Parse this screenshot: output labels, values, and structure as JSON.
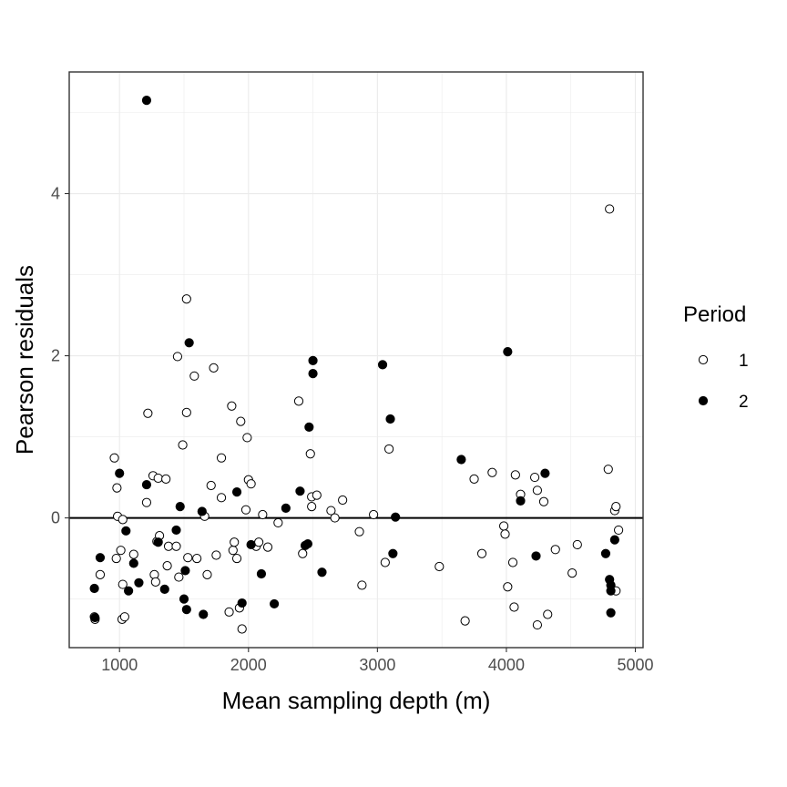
{
  "chart_data": {
    "type": "scatter",
    "xlabel": "Mean sampling depth (m)",
    "ylabel": "Pearson residuals",
    "xlim": [
      610,
      5060
    ],
    "ylim": [
      -1.6,
      5.5
    ],
    "xticks": [
      1000,
      2000,
      3000,
      4000,
      5000
    ],
    "yticks": [
      0,
      2,
      4
    ],
    "grid": true,
    "reference_line_y": 0,
    "legend": {
      "title": "Period",
      "position": "right",
      "entries": [
        {
          "label": "1",
          "marker": "open-circle"
        },
        {
          "label": "2",
          "marker": "filled-circle"
        }
      ]
    },
    "series": [
      {
        "name": "1",
        "marker": "open-circle",
        "points": [
          [
            805,
            -1.22
          ],
          [
            810,
            -1.25
          ],
          [
            850,
            -0.7
          ],
          [
            960,
            0.74
          ],
          [
            975,
            -0.5
          ],
          [
            980,
            0.37
          ],
          [
            985,
            0.02
          ],
          [
            1010,
            -0.4
          ],
          [
            1020,
            -1.25
          ],
          [
            1025,
            -0.02
          ],
          [
            1025,
            -0.82
          ],
          [
            1040,
            -1.22
          ],
          [
            1110,
            -0.45
          ],
          [
            1210,
            0.19
          ],
          [
            1220,
            1.29
          ],
          [
            1260,
            0.52
          ],
          [
            1270,
            -0.7
          ],
          [
            1280,
            -0.79
          ],
          [
            1290,
            -0.29
          ],
          [
            1300,
            0.49
          ],
          [
            1310,
            -0.22
          ],
          [
            1360,
            0.48
          ],
          [
            1370,
            -0.59
          ],
          [
            1380,
            -0.35
          ],
          [
            1440,
            -0.35
          ],
          [
            1450,
            1.99
          ],
          [
            1460,
            -0.73
          ],
          [
            1490,
            0.9
          ],
          [
            1520,
            2.7
          ],
          [
            1520,
            1.3
          ],
          [
            1530,
            -0.49
          ],
          [
            1580,
            1.75
          ],
          [
            1600,
            -0.5
          ],
          [
            1660,
            0.02
          ],
          [
            1680,
            -0.7
          ],
          [
            1710,
            0.4
          ],
          [
            1730,
            1.85
          ],
          [
            1750,
            -0.46
          ],
          [
            1790,
            0.25
          ],
          [
            1790,
            0.74
          ],
          [
            1850,
            -1.16
          ],
          [
            1870,
            1.38
          ],
          [
            1880,
            -0.4
          ],
          [
            1890,
            -0.3
          ],
          [
            1910,
            -0.5
          ],
          [
            1930,
            -1.11
          ],
          [
            1940,
            1.19
          ],
          [
            1950,
            -1.37
          ],
          [
            1980,
            0.1
          ],
          [
            1990,
            0.99
          ],
          [
            2000,
            0.47
          ],
          [
            2020,
            0.42
          ],
          [
            2060,
            -0.35
          ],
          [
            2080,
            -0.3
          ],
          [
            2110,
            0.04
          ],
          [
            2150,
            -0.36
          ],
          [
            2230,
            -0.06
          ],
          [
            2390,
            1.44
          ],
          [
            2420,
            -0.44
          ],
          [
            2480,
            0.79
          ],
          [
            2490,
            0.26
          ],
          [
            2490,
            0.14
          ],
          [
            2530,
            0.28
          ],
          [
            2640,
            0.09
          ],
          [
            2670,
            0.0
          ],
          [
            2730,
            0.22
          ],
          [
            2860,
            -0.17
          ],
          [
            2880,
            -0.83
          ],
          [
            2970,
            0.04
          ],
          [
            3060,
            -0.55
          ],
          [
            3090,
            0.85
          ],
          [
            3480,
            -0.6
          ],
          [
            3680,
            -1.27
          ],
          [
            3750,
            0.48
          ],
          [
            3810,
            -0.44
          ],
          [
            3890,
            0.56
          ],
          [
            3980,
            -0.1
          ],
          [
            3990,
            -0.2
          ],
          [
            4010,
            -0.85
          ],
          [
            4050,
            -0.55
          ],
          [
            4060,
            -1.1
          ],
          [
            4070,
            0.53
          ],
          [
            4110,
            0.29
          ],
          [
            4220,
            0.5
          ],
          [
            4240,
            0.34
          ],
          [
            4240,
            -1.32
          ],
          [
            4290,
            0.2
          ],
          [
            4320,
            -1.19
          ],
          [
            4380,
            -0.39
          ],
          [
            4510,
            -0.68
          ],
          [
            4550,
            -0.33
          ],
          [
            4790,
            0.6
          ],
          [
            4800,
            3.81
          ],
          [
            4840,
            0.09
          ],
          [
            4850,
            0.14
          ],
          [
            4850,
            -0.9
          ],
          [
            4870,
            -0.15
          ]
        ]
      },
      {
        "name": "2",
        "marker": "filled-circle",
        "points": [
          [
            805,
            -0.87
          ],
          [
            810,
            -1.23
          ],
          [
            850,
            -0.49
          ],
          [
            1000,
            0.55
          ],
          [
            1050,
            -0.16
          ],
          [
            1070,
            -0.9
          ],
          [
            1110,
            -0.56
          ],
          [
            1150,
            -0.8
          ],
          [
            1210,
            0.41
          ],
          [
            1210,
            5.15
          ],
          [
            1300,
            -0.3
          ],
          [
            1350,
            -0.88
          ],
          [
            1440,
            -0.15
          ],
          [
            1470,
            0.14
          ],
          [
            1500,
            -1.0
          ],
          [
            1510,
            -0.65
          ],
          [
            1520,
            -1.13
          ],
          [
            1540,
            2.16
          ],
          [
            1640,
            0.08
          ],
          [
            1650,
            -1.19
          ],
          [
            1910,
            0.32
          ],
          [
            1950,
            -1.05
          ],
          [
            2020,
            -0.33
          ],
          [
            2100,
            -0.69
          ],
          [
            2200,
            -1.06
          ],
          [
            2290,
            0.12
          ],
          [
            2400,
            0.33
          ],
          [
            2440,
            -0.34
          ],
          [
            2460,
            -0.32
          ],
          [
            2470,
            1.12
          ],
          [
            2500,
            1.94
          ],
          [
            2500,
            1.78
          ],
          [
            2570,
            -0.67
          ],
          [
            3040,
            1.89
          ],
          [
            3100,
            1.22
          ],
          [
            3120,
            -0.44
          ],
          [
            3140,
            0.01
          ],
          [
            3650,
            0.72
          ],
          [
            4010,
            2.05
          ],
          [
            4110,
            0.21
          ],
          [
            4230,
            -0.47
          ],
          [
            4300,
            0.55
          ],
          [
            4770,
            -0.44
          ],
          [
            4800,
            -0.76
          ],
          [
            4810,
            -0.83
          ],
          [
            4810,
            -0.9
          ],
          [
            4810,
            -1.17
          ],
          [
            4840,
            -0.27
          ]
        ]
      }
    ]
  }
}
